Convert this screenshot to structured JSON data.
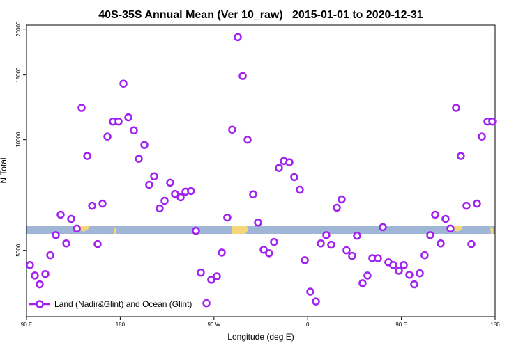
{
  "chart_data": {
    "type": "scatter",
    "title": "40S-35S Annual Mean (Ver 10_raw)   2015-01-01 to 2020-12-31",
    "xlabel": "Longitude (deg E)",
    "ylabel": "N Total",
    "ylog": true,
    "xlim": [
      90,
      540
    ],
    "ylim": [
      3300,
      20500
    ],
    "xticks": [
      {
        "value": 90,
        "label": "90 E"
      },
      180,
      {
        "value": 270,
        "label": "90 W"
      },
      {
        "value": 360,
        "label": "0"
      },
      {
        "value": 450,
        "label": "90 E"
      },
      {
        "value": 540,
        "label": "180"
      }
    ],
    "yticks": [
      5000,
      10000,
      15000,
      20000
    ],
    "legend": "bottom-left",
    "series": [
      {
        "name": "Land (Nadir&Glint) and Ocean (Glint)",
        "color": "#a020f0",
        "x": [
          93.3,
          98.0,
          102.7,
          108.1,
          112.8,
          118.1,
          122.8,
          128.2,
          132.9,
          138.3,
          142.9,
          148.3,
          153.0,
          158.3,
          163.0,
          167.7,
          173.1,
          178.4,
          183.1,
          187.8,
          193.1,
          197.8,
          203.2,
          207.8,
          212.5,
          217.9,
          222.6,
          227.9,
          232.6,
          238.0,
          242.7,
          248.0,
          252.7,
          257.4,
          262.8,
          267.4,
          272.8,
          277.5,
          282.8,
          287.5,
          292.9,
          297.6,
          302.3,
          307.6,
          312.3,
          317.7,
          323.0,
          327.7,
          332.4,
          337.1,
          342.4,
          347.1,
          352.5,
          357.2,
          362.5,
          367.9,
          372.6,
          377.9,
          382.6,
          388.0,
          392.7,
          397.3,
          402.7,
          407.4,
          412.7,
          417.4,
          422.1,
          427.5,
          432.2,
          437.5,
          442.2,
          447.6,
          452.3,
          457.6,
          462.3,
          467.7,
          472.3,
          477.7,
          482.4,
          487.7,
          492.4,
          497.1,
          502.5,
          507.1,
          512.5,
          517.2,
          522.6,
          527.3,
          532.6,
          537.3
        ],
        "values": [
          4560,
          4270,
          4040,
          4310,
          4850,
          5500,
          6250,
          5220,
          6090,
          5730,
          12200,
          9030,
          6610,
          5200,
          6700,
          10200,
          11200,
          11200,
          14200,
          11500,
          10600,
          8870,
          9680,
          7540,
          7950,
          6500,
          6820,
          7640,
          7120,
          6970,
          7220,
          7250,
          5650,
          4350,
          3590,
          4160,
          4250,
          4930,
          6140,
          10650,
          19000,
          14900,
          10000,
          7100,
          5950,
          5020,
          4910,
          5270,
          8380,
          8750,
          8680,
          7910,
          7310,
          4700,
          3860,
          3630,
          5220,
          5500,
          5180,
          6530,
          6880,
          5000,
          4830,
          5480,
          4070,
          4270,
          4760,
          4760,
          5780,
          4640,
          4560,
          4400,
          4560,
          4290,
          4040,
          4330,
          4850,
          5500,
          6250,
          5220,
          6090,
          5730,
          12200,
          9030,
          6610,
          5200,
          6700,
          10200,
          11200,
          11200
        ]
      }
    ]
  }
}
